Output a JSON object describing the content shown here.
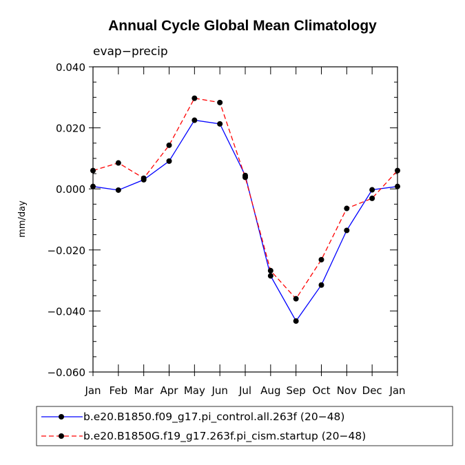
{
  "chart_data": {
    "type": "line",
    "title": "Annual Cycle Global Mean Climatology",
    "subtitle": "evap−precip",
    "xlabel": "",
    "ylabel": "mm/day",
    "categories": [
      "Jan",
      "Feb",
      "Mar",
      "Apr",
      "May",
      "Jun",
      "Jul",
      "Aug",
      "Sep",
      "Oct",
      "Nov",
      "Dec",
      "Jan"
    ],
    "ylim": [
      -0.06,
      0.04
    ],
    "yticks": [
      0.04,
      0.02,
      0.0,
      -0.02,
      -0.04,
      -0.06
    ],
    "ytick_labels": [
      "0.040",
      "0.020",
      "0.000",
      "−0.020",
      "−0.040",
      "−0.060"
    ],
    "series": [
      {
        "name": "b.e20.B1850.f09_g17.pi_control.all.263f (20−48)",
        "color": "#0000ff",
        "dash": "solid",
        "values": [
          0.0008,
          -0.0004,
          0.003,
          0.0091,
          0.0225,
          0.0213,
          0.0044,
          -0.0285,
          -0.0433,
          -0.0315,
          -0.0136,
          -0.0003,
          0.0008
        ]
      },
      {
        "name": "b.e20.B1850G.f19_g17.263f.pi_cism.startup (20−48)",
        "color": "#ff0000",
        "dash": "dashed",
        "values": [
          0.006,
          0.0085,
          0.0035,
          0.0143,
          0.0297,
          0.0283,
          0.0038,
          -0.0268,
          -0.036,
          -0.0232,
          -0.0064,
          -0.0031,
          0.006
        ]
      }
    ]
  }
}
